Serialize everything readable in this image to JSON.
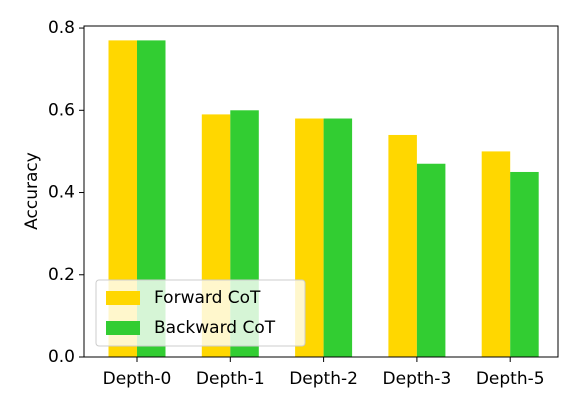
{
  "chart_data": {
    "type": "bar",
    "ylabel": "Accuracy",
    "categories": [
      "Depth-0",
      "Depth-1",
      "Depth-2",
      "Depth-3",
      "Depth-5"
    ],
    "series": [
      {
        "name": "Forward CoT",
        "color": "#ffd700",
        "values": [
          0.77,
          0.59,
          0.58,
          0.54,
          0.5
        ]
      },
      {
        "name": "Backward CoT",
        "color": "#32cd32",
        "values": [
          0.77,
          0.6,
          0.58,
          0.47,
          0.45
        ]
      }
    ],
    "ylim": [
      0,
      0.805
    ],
    "yticks": [
      {
        "value": 0,
        "label": "0.0"
      },
      0.2,
      0.4,
      0.6,
      0.8
    ],
    "legend": "lower left"
  }
}
